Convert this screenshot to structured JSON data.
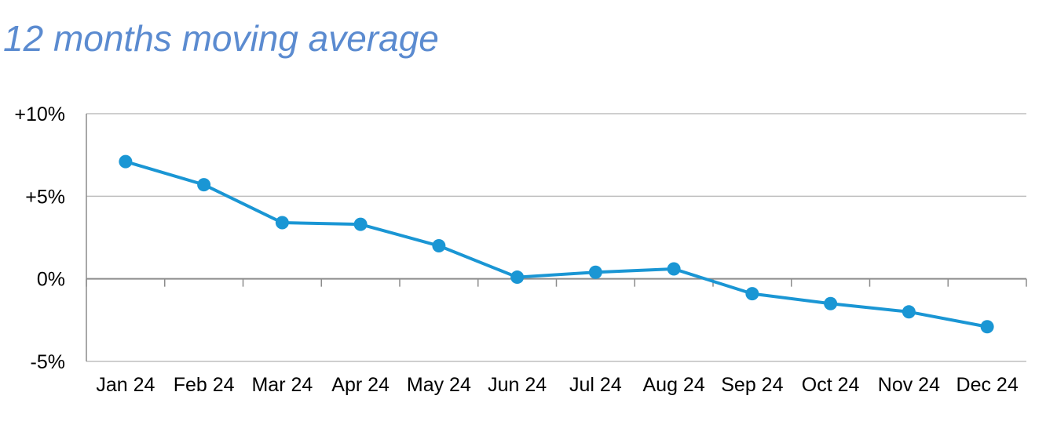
{
  "chart_data": {
    "type": "line",
    "title": "12 months moving average",
    "xlabel": "",
    "ylabel": "",
    "categories": [
      "Jan 24",
      "Feb 24",
      "Mar 24",
      "Apr 24",
      "May 24",
      "Jun 24",
      "Jul 24",
      "Aug 24",
      "Sep 24",
      "Oct 24",
      "Nov 24",
      "Dec 24"
    ],
    "series": [
      {
        "values": [
          7.1,
          5.7,
          3.4,
          3.3,
          2.0,
          0.1,
          0.4,
          0.6,
          -0.9,
          -1.5,
          -2.0,
          -2.9
        ],
        "color": "#1a96d4"
      }
    ],
    "ylim": [
      -5,
      10
    ],
    "yticks": [
      10,
      5,
      0,
      -5
    ],
    "ytick_labels": [
      "+10%",
      "+5%",
      "0%",
      "-5%"
    ],
    "grid": true,
    "legend": "none",
    "colors": {
      "title": "#5b8bd0",
      "line": "#1a96d4",
      "grid": "#bfbfbf",
      "axis": "#8c8c8c"
    }
  }
}
